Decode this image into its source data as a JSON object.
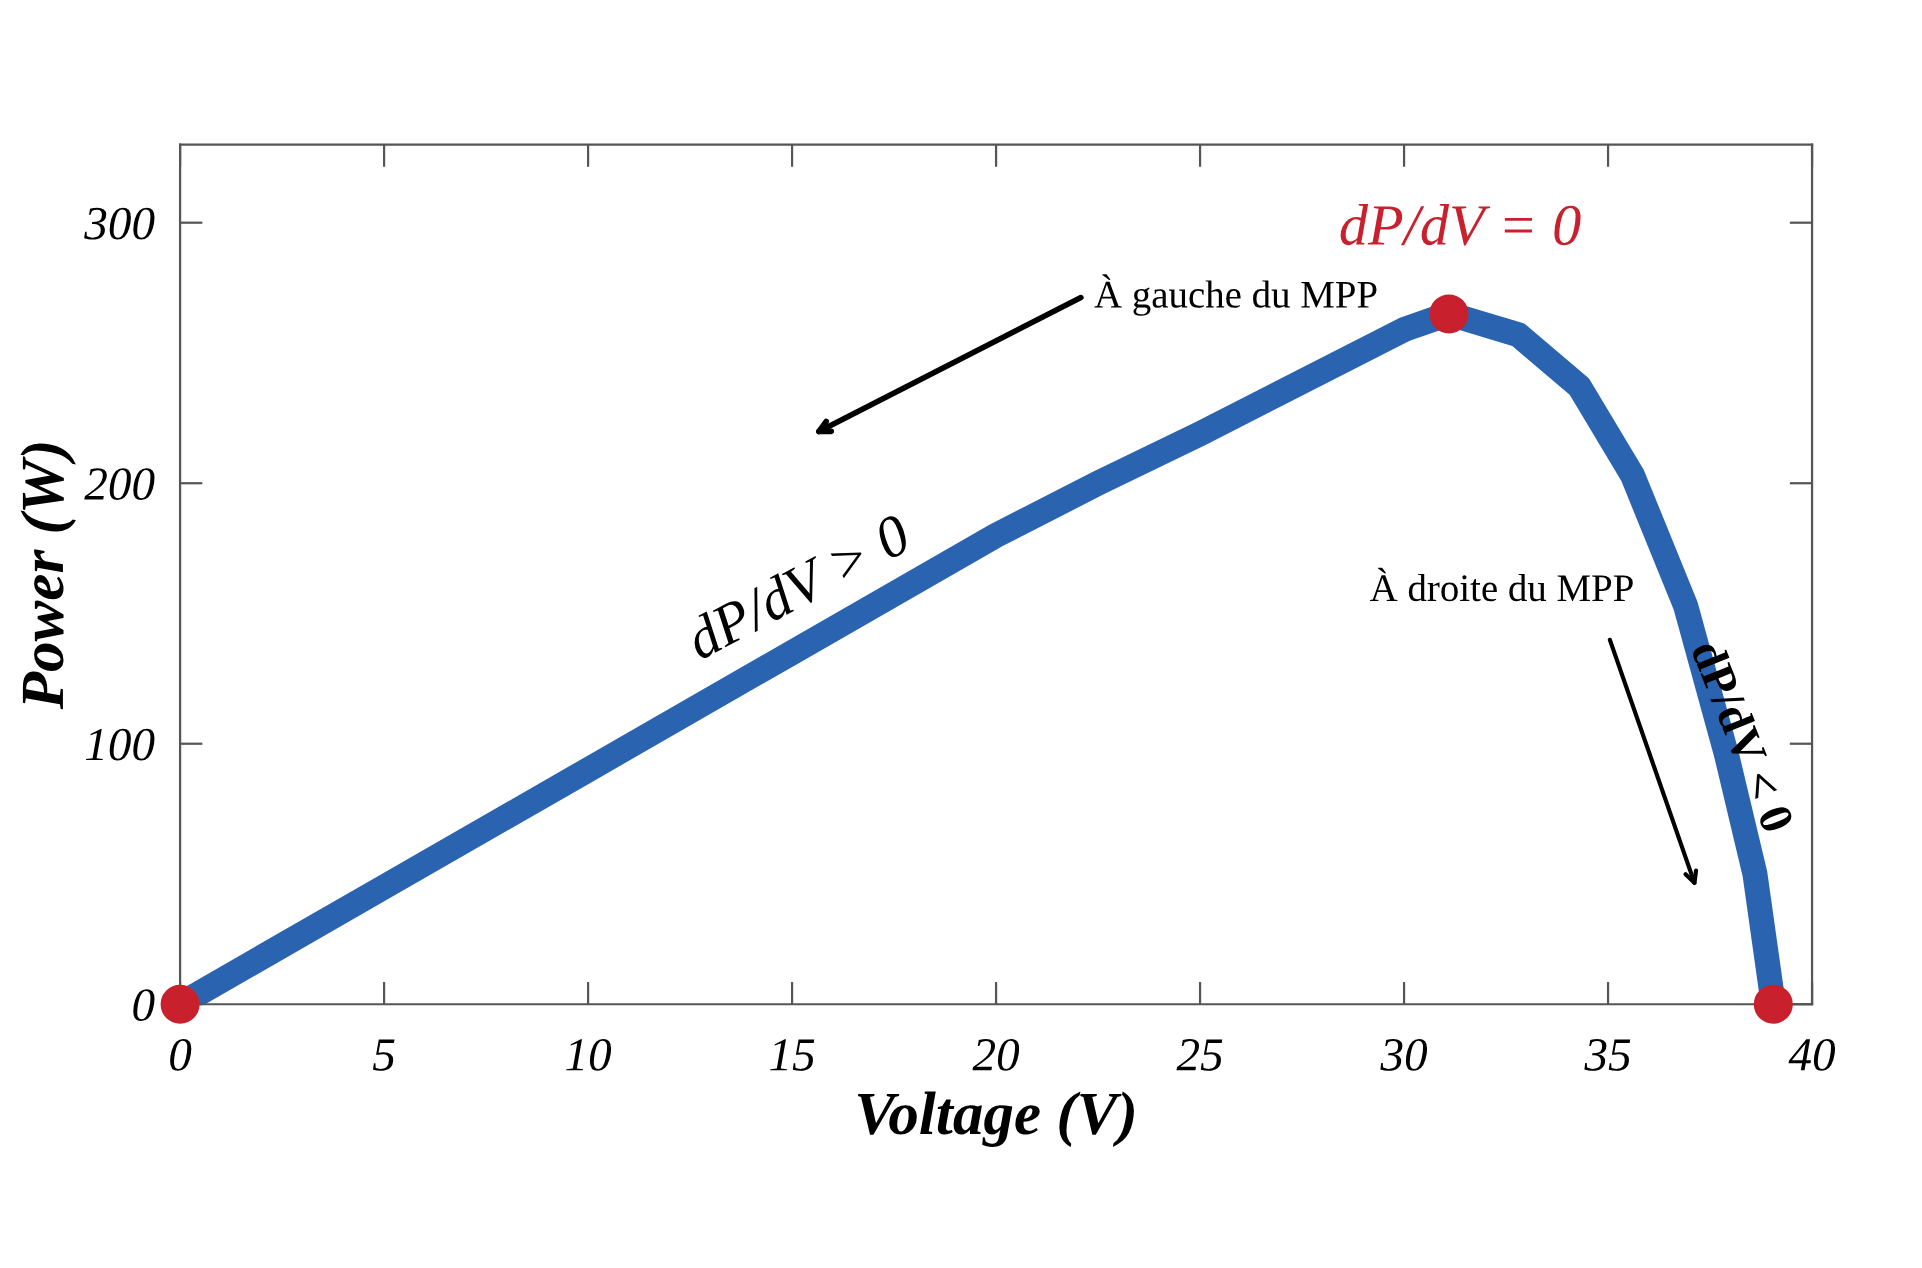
{
  "chart_data": {
    "type": "line",
    "xlabel": "Voltage (V)",
    "ylabel": "Power (W)",
    "xlim": [
      0,
      40
    ],
    "ylim": [
      0,
      330
    ],
    "xticks": [
      0,
      5,
      10,
      15,
      20,
      25,
      30,
      35,
      40
    ],
    "yticks": [
      0,
      100,
      200,
      300
    ],
    "grid": false,
    "series": [
      {
        "color": "#2a64b0",
        "line_style": "solid",
        "x": [
          0,
          5,
          10,
          15,
          20,
          22.5,
          25,
          27.5,
          30,
          31.1,
          32.8,
          34.3,
          35.6,
          36.9,
          37.9,
          38.6,
          39.05
        ],
        "values": [
          0,
          45,
          90,
          135,
          180,
          200,
          219,
          239,
          259,
          265,
          257,
          237,
          203,
          153,
          96,
          50,
          0
        ]
      },
      {
        "type": "scatter",
        "color": "#c8202c",
        "marker": "circle",
        "x": [
          0,
          31.1,
          39.05
        ],
        "values": [
          0,
          265,
          0
        ]
      }
    ],
    "annotations": [
      "À gauche du MPP",
      "dP/dV > 0",
      {
        "text": "dP/dV = 0",
        "x": 31.1,
        "y": 265
      },
      "À droite du MPP",
      "dP/dV < 0"
    ]
  }
}
